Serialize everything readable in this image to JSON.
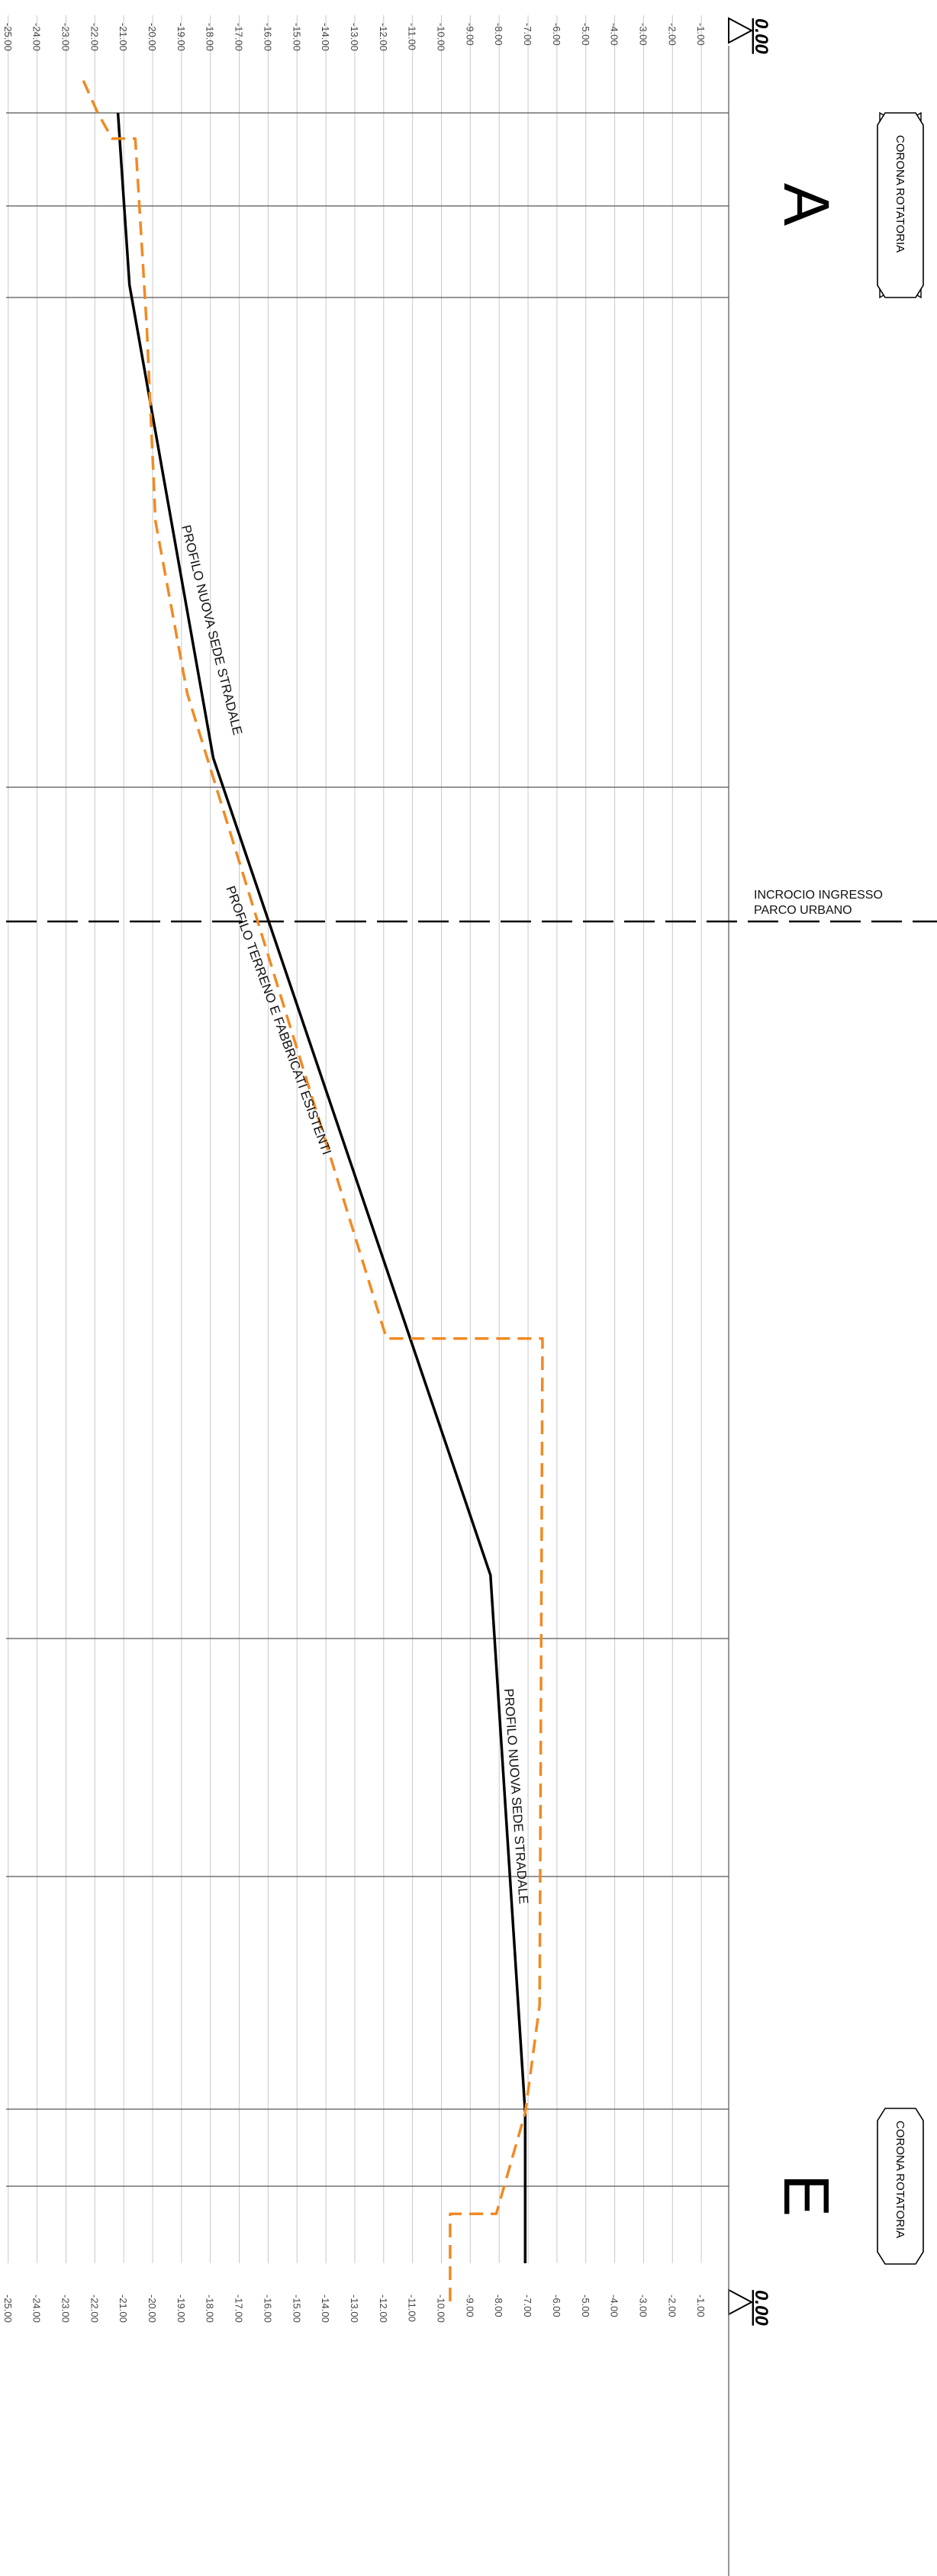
{
  "datum": {
    "top": "0.00",
    "bottom": "0.00"
  },
  "axis_ticks": [
    "-1.00",
    "-2.00",
    "-3.00",
    "-4.00",
    "-5.00",
    "-6.00",
    "-7.00",
    "-8.00",
    "-9.00",
    "-10.00",
    "-11.00",
    "-12.00",
    "-13.00",
    "-14.00",
    "-15.00",
    "-16.00",
    "-17.00",
    "-18.00",
    "-19.00",
    "-20.00",
    "-21.00",
    "-22.00",
    "-23.00",
    "-24.00",
    "-25.00"
  ],
  "sections": {
    "start": {
      "letter": "A",
      "badge": "CORONA ROTATORIA"
    },
    "end": {
      "letter": "E",
      "badge": "CORONA ROTATORIA"
    }
  },
  "junction": {
    "line1": "INCROCIO INGRESSO",
    "line2": "PARCO URBANO"
  },
  "labels": {
    "new_road_upper": "PROFILO NUOVA SEDE STRADALE",
    "existing_terrain": "PROFILO TERRENO E FABBRICATI ESISTENTI",
    "new_road_lower": "PROFILO NUOVA SEDE STRADALE"
  },
  "colors": {
    "new_road": "#000000",
    "existing_terrain": "#f08a24",
    "grid": "#c8c8c8",
    "section_line": "#555555"
  },
  "chart_data": {
    "type": "line",
    "orientation": "vertical profile: depth on horizontal axis, chainage along vertical",
    "depth_range": [
      0,
      -25
    ],
    "series": [
      {
        "name": "PROFILO NUOVA SEDE STRADALE",
        "style": "solid",
        "points": [
          {
            "s": 0.0,
            "depth": -21.2
          },
          {
            "s": 0.04,
            "depth": -21.0
          },
          {
            "s": 0.08,
            "depth": -20.8
          },
          {
            "s": 0.3,
            "depth": -17.9
          },
          {
            "s": 0.68,
            "depth": -8.3
          },
          {
            "s": 0.93,
            "depth": -7.1
          },
          {
            "s": 1.0,
            "depth": -7.1
          }
        ]
      },
      {
        "name": "PROFILO TERRENO E FABBRICATI ESISTENTI",
        "style": "dashed",
        "points": [
          {
            "s": -0.015,
            "depth": -22.4
          },
          {
            "s": 0.0,
            "depth": -21.9
          },
          {
            "s": 0.012,
            "depth": -21.4
          },
          {
            "s": 0.012,
            "depth": -20.6
          },
          {
            "s": 0.1,
            "depth": -20.2
          },
          {
            "s": 0.19,
            "depth": -19.9
          },
          {
            "s": 0.27,
            "depth": -18.8
          },
          {
            "s": 0.57,
            "depth": -11.9
          },
          {
            "s": 0.57,
            "depth": -6.5
          },
          {
            "s": 0.88,
            "depth": -6.6
          },
          {
            "s": 0.93,
            "depth": -7.1
          },
          {
            "s": 0.977,
            "depth": -8.1
          },
          {
            "s": 0.977,
            "depth": -9.7
          },
          {
            "s": 1.02,
            "depth": -9.7
          }
        ]
      }
    ]
  }
}
